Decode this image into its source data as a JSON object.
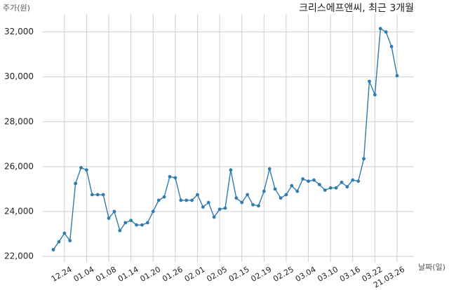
{
  "chart_data": {
    "type": "line",
    "title": "크리스에프앤씨, 최근 3개월",
    "y_label": "주가(원)",
    "x_label": "날짜(일)",
    "categories": [
      null,
      null,
      "12.24",
      null,
      null,
      null,
      "01.04",
      null,
      null,
      null,
      "01.08",
      null,
      null,
      null,
      "01.14",
      null,
      null,
      null,
      "01.20",
      null,
      null,
      null,
      "01.26",
      null,
      null,
      null,
      "02.01",
      null,
      null,
      null,
      "02.05",
      null,
      null,
      null,
      "02.15",
      null,
      null,
      null,
      "02.19",
      null,
      null,
      null,
      "02.25",
      null,
      null,
      null,
      "03.04",
      null,
      null,
      null,
      "03.10",
      null,
      null,
      null,
      "03.16",
      null,
      null,
      null,
      "03.22",
      null,
      null,
      null,
      "21.03.26"
    ],
    "series": [
      {
        "name": "주가",
        "color": "#2e7cb0",
        "values": [
          22300,
          22650,
          23030,
          22700,
          25250,
          25950,
          25850,
          24750,
          24750,
          24750,
          23700,
          24000,
          23150,
          23500,
          23600,
          23400,
          23400,
          23500,
          24000,
          24500,
          24650,
          25550,
          25500,
          24500,
          24500,
          24500,
          24750,
          24200,
          24400,
          23750,
          24100,
          24150,
          25850,
          24600,
          24400,
          24750,
          24300,
          24250,
          24900,
          25900,
          25000,
          24600,
          24750,
          25150,
          24900,
          25450,
          25350,
          25400,
          25200,
          24950,
          25050,
          25050,
          25300,
          25100,
          25400,
          25350,
          26350,
          29800,
          29200,
          32150,
          32000,
          31350,
          30050
        ]
      }
    ],
    "ylim": [
      21750,
      32800
    ],
    "yticks": [
      {
        "value": 22000,
        "label": "22,000"
      },
      {
        "value": 24000,
        "label": "24,000"
      },
      {
        "value": 26000,
        "label": "26,000"
      },
      {
        "value": 28000,
        "label": "28,000"
      },
      {
        "value": 30000,
        "label": "30,000"
      },
      {
        "value": 32000,
        "label": "32,000"
      }
    ],
    "grid": true
  }
}
